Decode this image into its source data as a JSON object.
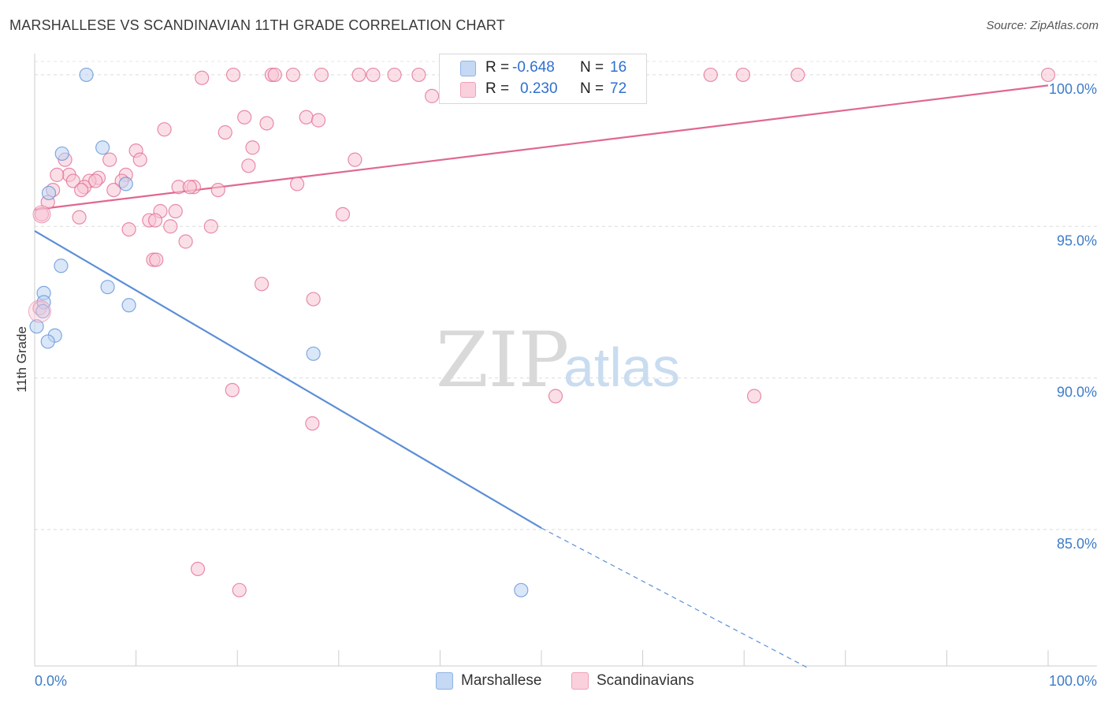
{
  "header": {
    "title": "MARSHALLESE VS SCANDINAVIAN 11TH GRADE CORRELATION CHART",
    "source": "Source: ZipAtlas.com"
  },
  "watermark": {
    "zip": "ZIP",
    "atlas": "atlas"
  },
  "legend": {
    "rows": [
      {
        "r_label": "R =",
        "r_value": "-0.648",
        "n_label": "N =",
        "n_value": "16",
        "color": "#aac8f0"
      },
      {
        "r_label": "R =",
        "r_value": "0.230",
        "n_label": "N =",
        "n_value": "72",
        "color": "#f5b8cb"
      }
    ],
    "bottom": [
      {
        "label": "Marshallese",
        "color": "#aac8f0"
      },
      {
        "label": "Scandinavians",
        "color": "#f5b8cb"
      }
    ]
  },
  "chart_data": {
    "type": "scatter",
    "title": "MARSHALLESE VS SCANDINAVIAN 11TH GRADE CORRELATION CHART",
    "xlabel": "",
    "ylabel": "11th Grade",
    "xlim": [
      0,
      100
    ],
    "ylim": [
      80.5,
      100.7
    ],
    "x_tick_labels": [
      "0.0%",
      "100.0%"
    ],
    "y_ticks": [
      85,
      90,
      95,
      100
    ],
    "y_tick_labels": [
      "85.0%",
      "90.0%",
      "95.0%",
      "100.0%"
    ],
    "grid": true,
    "series": [
      {
        "name": "Marshallese",
        "color": "#5b8fd6",
        "fill": "#bcd4f3",
        "points": [
          [
            5.1,
            100.0
          ],
          [
            2.7,
            97.4
          ],
          [
            6.7,
            97.6
          ],
          [
            9.0,
            96.4
          ],
          [
            1.4,
            96.1
          ],
          [
            2.6,
            93.7
          ],
          [
            0.9,
            92.8
          ],
          [
            0.9,
            92.5
          ],
          [
            0.8,
            92.2
          ],
          [
            7.2,
            93.0
          ],
          [
            9.3,
            92.4
          ],
          [
            0.2,
            91.7
          ],
          [
            2.0,
            91.4
          ],
          [
            1.3,
            91.2
          ],
          [
            27.5,
            90.8
          ],
          [
            48.0,
            83.0
          ]
        ],
        "trend": {
          "x0": 0,
          "y0": 94.85,
          "x1": 50,
          "y1": 85.05,
          "dash_to_x": 76.5,
          "dash_to_y": 80.4
        }
      },
      {
        "name": "Scandinavians",
        "color": "#e06890",
        "fill": "#f8c5d4",
        "points": [
          [
            16.5,
            99.9
          ],
          [
            19.6,
            100.0
          ],
          [
            23.4,
            100.0
          ],
          [
            23.7,
            100.0
          ],
          [
            25.5,
            100.0
          ],
          [
            28.3,
            100.0
          ],
          [
            32.0,
            100.0
          ],
          [
            33.4,
            100.0
          ],
          [
            35.5,
            100.0
          ],
          [
            37.9,
            100.0
          ],
          [
            41.0,
            100.0
          ],
          [
            41.3,
            100.0
          ],
          [
            47.6,
            100.0
          ],
          [
            52.7,
            100.0
          ],
          [
            66.7,
            100.0
          ],
          [
            69.9,
            100.0
          ],
          [
            75.3,
            100.0
          ],
          [
            100.0,
            100.0
          ],
          [
            39.2,
            99.3
          ],
          [
            20.7,
            98.6
          ],
          [
            22.9,
            98.4
          ],
          [
            26.8,
            98.6
          ],
          [
            28.0,
            98.5
          ],
          [
            12.8,
            98.2
          ],
          [
            18.8,
            98.1
          ],
          [
            21.5,
            97.6
          ],
          [
            10.0,
            97.5
          ],
          [
            7.4,
            97.2
          ],
          [
            10.4,
            97.2
          ],
          [
            3.0,
            97.2
          ],
          [
            31.6,
            97.2
          ],
          [
            21.1,
            97.0
          ],
          [
            3.4,
            96.7
          ],
          [
            2.2,
            96.7
          ],
          [
            9.0,
            96.7
          ],
          [
            6.3,
            96.6
          ],
          [
            8.6,
            96.5
          ],
          [
            3.8,
            96.5
          ],
          [
            5.4,
            96.5
          ],
          [
            25.9,
            96.4
          ],
          [
            14.2,
            96.3
          ],
          [
            15.7,
            96.3
          ],
          [
            15.3,
            96.3
          ],
          [
            4.9,
            96.3
          ],
          [
            18.1,
            96.2
          ],
          [
            1.8,
            96.2
          ],
          [
            7.8,
            96.2
          ],
          [
            4.6,
            96.2
          ],
          [
            1.3,
            95.8
          ],
          [
            12.4,
            95.5
          ],
          [
            13.9,
            95.5
          ],
          [
            0.7,
            95.4
          ],
          [
            11.3,
            95.2
          ],
          [
            11.9,
            95.2
          ],
          [
            4.4,
            95.3
          ],
          [
            30.4,
            95.4
          ],
          [
            17.4,
            95.0
          ],
          [
            13.4,
            95.0
          ],
          [
            9.3,
            94.9
          ],
          [
            14.9,
            94.5
          ],
          [
            11.7,
            93.9
          ],
          [
            22.4,
            93.1
          ],
          [
            27.5,
            92.6
          ],
          [
            0.5,
            92.3
          ],
          [
            19.5,
            89.6
          ],
          [
            51.4,
            89.4
          ],
          [
            71.0,
            89.4
          ],
          [
            27.4,
            88.5
          ],
          [
            16.1,
            83.7
          ],
          [
            20.2,
            83.0
          ],
          [
            12.0,
            93.9
          ],
          [
            6.0,
            96.5
          ]
        ],
        "trend": {
          "x0": 0,
          "y0": 95.55,
          "x1": 100,
          "y1": 99.65
        }
      }
    ]
  }
}
